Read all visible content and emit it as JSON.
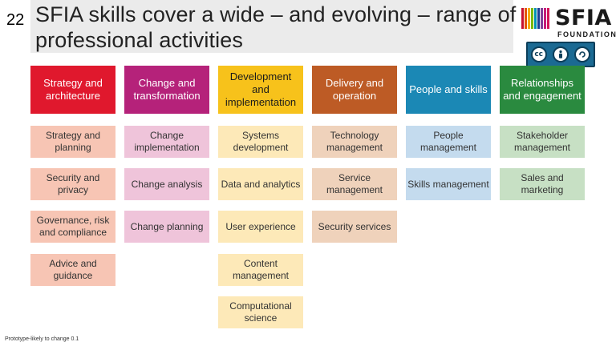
{
  "slide": {
    "number": "22",
    "title": "SFIA skills cover a wide – and evolving – range of professional activities",
    "footer": "Prototype-likely to change 0.1"
  },
  "logo": {
    "word": "SFIA",
    "sub": "FOUNDATION",
    "bar_colors": [
      "#c8102e",
      "#e35205",
      "#f6a800",
      "#7ab800",
      "#0093b2",
      "#1c3f94",
      "#7f3f98",
      "#c51b7a",
      "#d4145a"
    ]
  },
  "license_badge": {
    "icons": [
      "cc-icon",
      "person-icon",
      "recycle-icon"
    ],
    "cc_text": "cc"
  },
  "categories": [
    {
      "header": "Strategy and architecture",
      "header_color": "#e0182d",
      "header_text_color": "#ffffff",
      "item_color": "#f7c5b4",
      "items": [
        "Strategy and planning",
        "Security and privacy",
        "Governance, risk and compliance",
        "Advice and guidance"
      ]
    },
    {
      "header": "Change and transformation",
      "header_color": "#b5227a",
      "header_text_color": "#ffffff",
      "item_color": "#efc4da",
      "items": [
        "Change implementation",
        "Change analysis",
        "Change planning"
      ]
    },
    {
      "header": "Development and implementation",
      "header_color": "#f7c21b",
      "header_text_color": "#1a1a1a",
      "item_color": "#fde9b8",
      "items": [
        "Systems development",
        "Data and analytics",
        "User experience",
        "Content management",
        "Computational science"
      ]
    },
    {
      "header": "Delivery and operation",
      "header_color": "#bd5b25",
      "header_text_color": "#ffffff",
      "item_color": "#efd2bb",
      "items": [
        "Technology management",
        "Service management",
        "Security services"
      ]
    },
    {
      "header": "People and skills",
      "header_color": "#1b88b5",
      "header_text_color": "#ffffff",
      "item_color": "#c4dbee",
      "items": [
        "People management",
        "Skills management"
      ]
    },
    {
      "header": "Relationships and engagement",
      "header_color": "#2a8a3f",
      "header_text_color": "#ffffff",
      "item_color": "#c7e0c4",
      "items": [
        "Stakeholder management",
        "Sales and marketing"
      ]
    }
  ]
}
